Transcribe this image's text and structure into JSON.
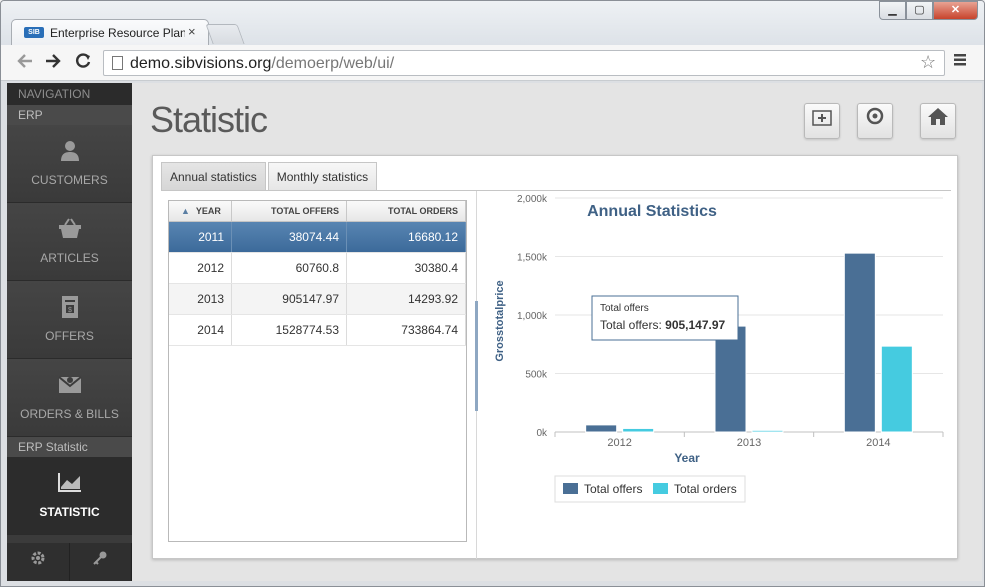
{
  "browser": {
    "tab_title": "Enterprise Resource Planni",
    "tab_favicon": "SIB",
    "tab_close": "×",
    "url_host": "demo.sibvisions.org",
    "url_path": "/demoerp/web/ui/",
    "window_buttons": {
      "minimize": "▁",
      "maximize": "▢",
      "close": "✕"
    },
    "icons": {
      "back": "back-arrow-icon",
      "forward": "forward-arrow-icon",
      "reload": "reload-icon",
      "star": "star-icon",
      "menu": "hamburger-menu-icon"
    }
  },
  "sidebar": {
    "header": "NAVIGATION",
    "group1": "ERP",
    "items": [
      {
        "label": "CUSTOMERS",
        "icon": "user-icon"
      },
      {
        "label": "ARTICLES",
        "icon": "basket-icon"
      },
      {
        "label": "OFFERS",
        "icon": "document-icon"
      },
      {
        "label": "ORDERS & BILLS",
        "icon": "envelope-icon"
      }
    ],
    "group2": "ERP Statistic",
    "active_item": {
      "label": "STATISTIC",
      "icon": "chart-icon"
    },
    "footer": [
      {
        "icon": "gear-icon"
      },
      {
        "icon": "key-icon"
      }
    ]
  },
  "main": {
    "title": "Statistic",
    "header_buttons": [
      {
        "icon": "new-window-icon"
      },
      {
        "icon": "refresh-icon"
      },
      {
        "icon": "home-icon"
      }
    ],
    "tabs": [
      {
        "label": "Annual statistics",
        "active": true
      },
      {
        "label": "Monthly statistics",
        "active": false
      }
    ]
  },
  "table": {
    "sort_indicator": "▲",
    "columns": [
      "YEAR",
      "TOTAL OFFERS",
      "TOTAL ORDERS"
    ],
    "rows": [
      [
        "2011",
        "38074.44",
        "16680.12"
      ],
      [
        "2012",
        "60760.8",
        "30380.4"
      ],
      [
        "2013",
        "905147.97",
        "14293.92"
      ],
      [
        "2014",
        "1528774.53",
        "733864.74"
      ]
    ],
    "selected_row": 0
  },
  "colors": {
    "offers": "#4a6f95",
    "orders": "#45cbe0",
    "selection": "#4674a4"
  },
  "chart_data": {
    "type": "bar",
    "title": "Annual Statistics",
    "xlabel": "Year",
    "ylabel": "Grosstotalprice",
    "categories": [
      "2012",
      "2013",
      "2014"
    ],
    "series": [
      {
        "name": "Total offers",
        "values": [
          60760.8,
          905147.97,
          1528774.53
        ]
      },
      {
        "name": "Total orders",
        "values": [
          30380.4,
          14293.92,
          733864.74
        ]
      }
    ],
    "ylim": [
      0,
      2000000
    ],
    "yticks": [
      "0k",
      "500k",
      "1,000k",
      "1,500k",
      "2,000k"
    ],
    "legend": "bottom-center",
    "tooltip": {
      "title": "Total offers",
      "label": "Total offers: ",
      "value": "905,147.97"
    }
  }
}
